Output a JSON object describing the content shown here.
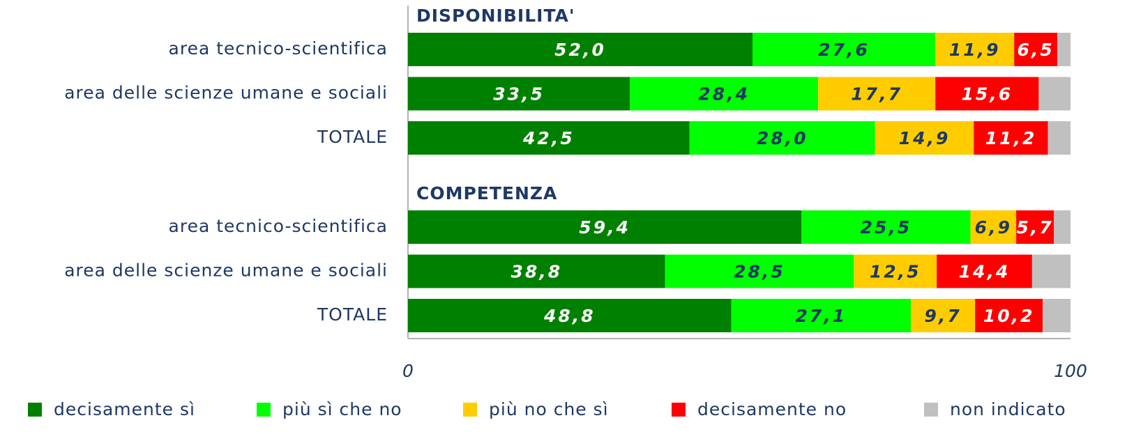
{
  "chart_data": {
    "type": "stacked-bar-horizontal",
    "groups": [
      "DISPONIBILITA'",
      "COMPETENZA"
    ],
    "categories": [
      "area tecnico-scientifica",
      "area delle scienze umane e sociali",
      "TOTALE",
      "area tecnico-scientifica",
      "area delle scienze umane e sociali",
      "TOTALE"
    ],
    "series": [
      {
        "name": "decisamente sì",
        "color": "#008000",
        "values": [
          52.0,
          33.5,
          42.5,
          59.4,
          38.8,
          48.8
        ],
        "value_labels": [
          "52,0",
          "33,5",
          "42,5",
          "59,4",
          "38,8",
          "48,8"
        ]
      },
      {
        "name": "più sì che no",
        "color": "#00ff00",
        "values": [
          27.6,
          28.4,
          28.0,
          25.5,
          28.5,
          27.1
        ],
        "value_labels": [
          "27,6",
          "28,4",
          "28,0",
          "25,5",
          "28,5",
          "27,1"
        ]
      },
      {
        "name": "più no che sì",
        "color": "#ffcc00",
        "values": [
          11.9,
          17.7,
          14.9,
          6.9,
          12.5,
          9.7
        ],
        "value_labels": [
          "11,9",
          "17,7",
          "14,9",
          "6,9",
          "12,5",
          "9,7"
        ]
      },
      {
        "name": "decisamente no",
        "color": "#ff0000",
        "values": [
          6.5,
          15.6,
          11.2,
          5.7,
          14.4,
          10.2
        ],
        "value_labels": [
          "6,5",
          "15,6",
          "11,2",
          "5,7",
          "14,4",
          "10,2"
        ]
      },
      {
        "name": "non indicato",
        "color": "#c0c0c0",
        "values": [
          2.0,
          4.8,
          3.4,
          2.5,
          5.8,
          4.2
        ]
      }
    ],
    "xlim": [
      0,
      100
    ],
    "xticks": [
      0,
      100
    ]
  }
}
